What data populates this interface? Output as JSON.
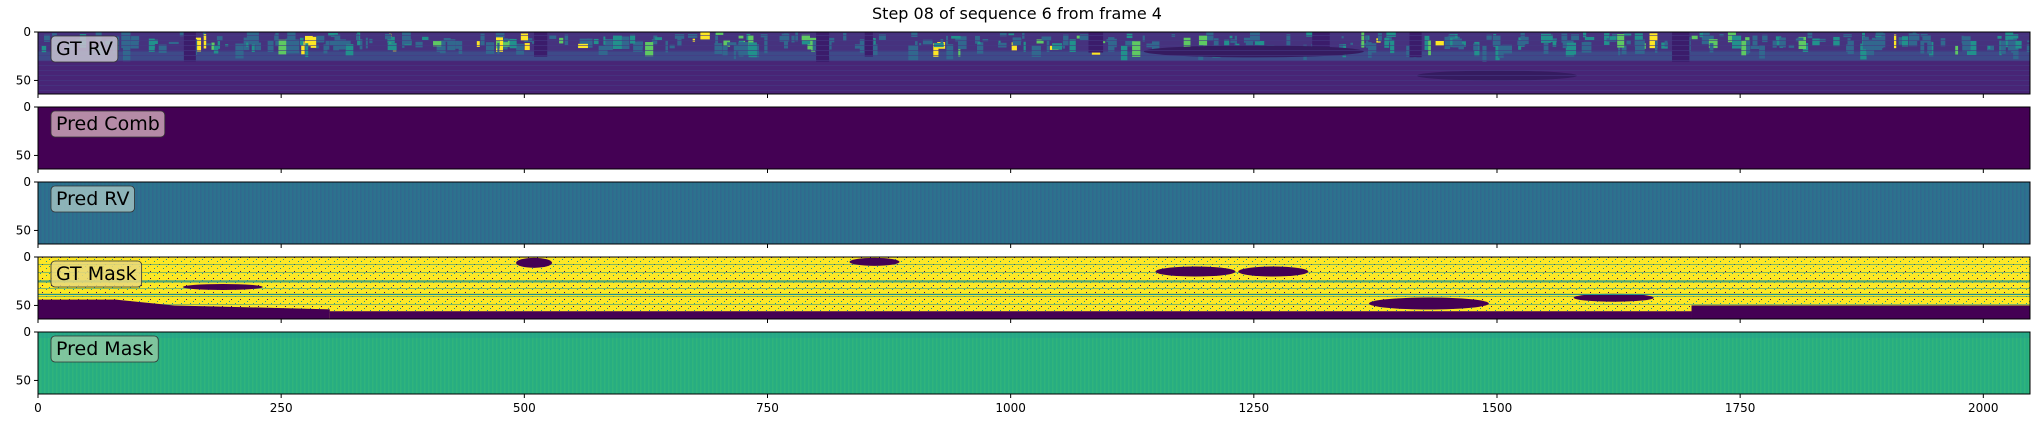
{
  "chart_data": {
    "type": "heatmap",
    "title": "Step 08 of sequence 6 from frame 4",
    "colormap": "viridis",
    "xlim": [
      0,
      2048
    ],
    "ylim": [
      64,
      0
    ],
    "x_ticks": [
      0,
      250,
      500,
      750,
      1000,
      1250,
      1500,
      1750,
      2000
    ],
    "y_ticks": [
      0,
      50
    ],
    "shared_x": true,
    "panels": [
      {
        "label": "GT RV",
        "label_box_color": "#c7c1cf",
        "style": "gt_rv"
      },
      {
        "label": "Pred Comb",
        "label_box_color": "#c9a3b6",
        "style": "pred_comb"
      },
      {
        "label": "Pred RV",
        "label_box_color": "#9ec0bf",
        "style": "pred_rv"
      },
      {
        "label": "GT Mask",
        "label_box_color": "#e9d87d",
        "style": "gt_mask"
      },
      {
        "label": "Pred Mask",
        "label_box_color": "#8ec9a3",
        "style": "pred_mask"
      }
    ],
    "colors": {
      "viridis_dark": "#440154",
      "viridis_blue": "#3b528b",
      "viridis_teal": "#2c728e",
      "viridis_green": "#27ad81",
      "viridis_yellow": "#fde725"
    }
  }
}
